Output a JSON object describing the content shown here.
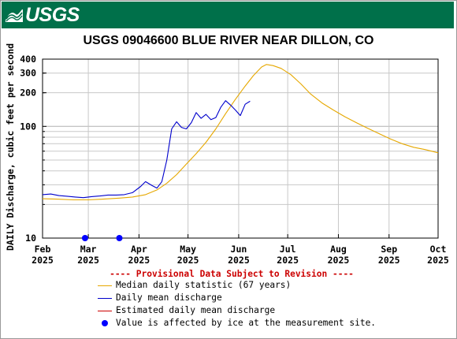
{
  "header": {
    "logo_text": "USGS"
  },
  "chart_data": {
    "type": "line",
    "title": "USGS 09046600 BLUE RIVER NEAR DILLON, CO",
    "ylabel": "DAILY Discharge, cubic feet per second",
    "xlabel": "",
    "y_scale": "log",
    "ylim": [
      10,
      400
    ],
    "y_ticks": [
      10,
      100,
      200,
      300,
      400
    ],
    "y_tick_labels": [
      "10",
      "100",
      "200",
      "300",
      "400"
    ],
    "xlim": [
      "2025-02-01",
      "2025-10-01"
    ],
    "x_ticks": [
      {
        "date": "2025-02-01",
        "month": "Feb",
        "year": "2025"
      },
      {
        "date": "2025-03-01",
        "month": "Mar",
        "year": "2025"
      },
      {
        "date": "2025-04-01",
        "month": "Apr",
        "year": "2025"
      },
      {
        "date": "2025-05-01",
        "month": "May",
        "year": "2025"
      },
      {
        "date": "2025-06-01",
        "month": "Jun",
        "year": "2025"
      },
      {
        "date": "2025-07-01",
        "month": "Jul",
        "year": "2025"
      },
      {
        "date": "2025-08-01",
        "month": "Aug",
        "year": "2025"
      },
      {
        "date": "2025-09-01",
        "month": "Sep",
        "year": "2025"
      },
      {
        "date": "2025-10-01",
        "month": "Oct",
        "year": "2025"
      }
    ],
    "grid": true,
    "note": "---- Provisional Data Subject to Revision ----",
    "series": [
      {
        "name": "Median daily statistic (67 years)",
        "color": "#e6a800",
        "points": [
          [
            "2025-02-01",
            22.5
          ],
          [
            "2025-02-10",
            22.3
          ],
          [
            "2025-02-20",
            22.0
          ],
          [
            "2025-03-01",
            22.0
          ],
          [
            "2025-03-10",
            22.3
          ],
          [
            "2025-03-20",
            22.8
          ],
          [
            "2025-03-28",
            23.3
          ],
          [
            "2025-04-05",
            24.5
          ],
          [
            "2025-04-12",
            27.0
          ],
          [
            "2025-04-18",
            31.0
          ],
          [
            "2025-04-24",
            37.0
          ],
          [
            "2025-04-30",
            46.0
          ],
          [
            "2025-05-06",
            57.0
          ],
          [
            "2025-05-12",
            72.0
          ],
          [
            "2025-05-18",
            95.0
          ],
          [
            "2025-05-24",
            130.0
          ],
          [
            "2025-05-30",
            175.0
          ],
          [
            "2025-06-05",
            230.0
          ],
          [
            "2025-06-10",
            285.0
          ],
          [
            "2025-06-15",
            340.0
          ],
          [
            "2025-06-18",
            358.0
          ],
          [
            "2025-06-22",
            350.0
          ],
          [
            "2025-06-27",
            330.0
          ],
          [
            "2025-07-03",
            290.0
          ],
          [
            "2025-07-09",
            240.0
          ],
          [
            "2025-07-15",
            195.0
          ],
          [
            "2025-07-22",
            162.0
          ],
          [
            "2025-07-29",
            140.0
          ],
          [
            "2025-08-05",
            122.0
          ],
          [
            "2025-08-12",
            108.0
          ],
          [
            "2025-08-19",
            96.0
          ],
          [
            "2025-08-26",
            86.0
          ],
          [
            "2025-09-02",
            77.0
          ],
          [
            "2025-09-09",
            70.0
          ],
          [
            "2025-09-16",
            65.0
          ],
          [
            "2025-09-23",
            62.0
          ],
          [
            "2025-10-01",
            58.0
          ]
        ]
      },
      {
        "name": "Daily mean discharge",
        "color": "#0000cc",
        "points": [
          [
            "2025-02-01",
            24.5
          ],
          [
            "2025-02-06",
            24.8
          ],
          [
            "2025-02-11",
            24.0
          ],
          [
            "2025-02-16",
            23.7
          ],
          [
            "2025-02-21",
            23.3
          ],
          [
            "2025-02-26",
            23.0
          ],
          [
            "2025-03-03",
            23.5
          ],
          [
            "2025-03-08",
            23.8
          ],
          [
            "2025-03-13",
            24.3
          ],
          [
            "2025-03-18",
            24.3
          ],
          [
            "2025-03-23",
            24.5
          ],
          [
            "2025-03-28",
            25.5
          ],
          [
            "2025-04-02",
            29.0
          ],
          [
            "2025-04-05",
            32.0
          ],
          [
            "2025-04-09",
            29.5
          ],
          [
            "2025-04-12",
            28.0
          ],
          [
            "2025-04-15",
            32.0
          ],
          [
            "2025-04-18",
            50.0
          ],
          [
            "2025-04-21",
            95.0
          ],
          [
            "2025-04-24",
            110.0
          ],
          [
            "2025-04-27",
            98.0
          ],
          [
            "2025-04-30",
            95.0
          ],
          [
            "2025-05-03",
            108.0
          ],
          [
            "2025-05-06",
            133.0
          ],
          [
            "2025-05-09",
            118.0
          ],
          [
            "2025-05-12",
            128.0
          ],
          [
            "2025-05-15",
            115.0
          ],
          [
            "2025-05-18",
            120.0
          ],
          [
            "2025-05-21",
            148.0
          ],
          [
            "2025-05-24",
            170.0
          ],
          [
            "2025-05-27",
            155.0
          ],
          [
            "2025-05-30",
            140.0
          ],
          [
            "2025-06-02",
            125.0
          ],
          [
            "2025-06-05",
            158.0
          ],
          [
            "2025-06-08",
            168.0
          ]
        ]
      }
    ],
    "legend": [
      {
        "label": "Median daily statistic (67 years)",
        "kind": "line",
        "color": "#e6a800"
      },
      {
        "label": "Daily mean discharge",
        "kind": "line",
        "color": "#0000cc"
      },
      {
        "label": "Estimated daily mean discharge",
        "kind": "line",
        "color": "#cc0000"
      },
      {
        "label": "Value is affected by ice at the measurement site.",
        "kind": "dot",
        "color": "#0000ff"
      }
    ],
    "markers": [
      {
        "date": "2025-02-27",
        "value": 10,
        "label": "Value is affected by ice at the measurement site."
      },
      {
        "date": "2025-03-20",
        "value": 10,
        "label": "Value is affected by ice at the measurement site."
      }
    ]
  }
}
